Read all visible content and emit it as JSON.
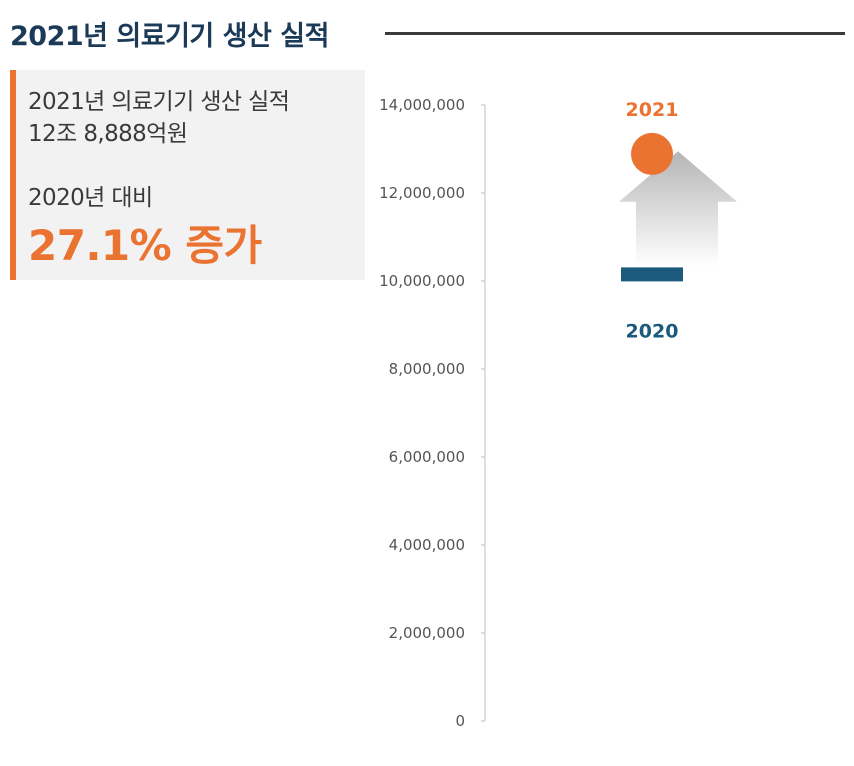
{
  "header": {
    "title": "2021년 의료기기 생산 실적"
  },
  "summary": {
    "line1": "2021년 의료기기 생산 실적",
    "line2": "12조 8,888억원",
    "line3": "2020년 대비",
    "highlight": "27.1% 증가"
  },
  "colors": {
    "accent": "#ea7331",
    "navy": "#1b3a57",
    "bar2020": "#1b5a7d",
    "arrow": "#b9b9b9"
  },
  "chart_data": {
    "type": "scatter",
    "title": "",
    "xlabel": "",
    "ylabel": "",
    "ylim": [
      0,
      14000000
    ],
    "grid": false,
    "y_ticks": [
      {
        "value": 0,
        "label": "0"
      },
      {
        "value": 2000000,
        "label": "2,000,000"
      },
      {
        "value": 4000000,
        "label": "4,000,000"
      },
      {
        "value": 6000000,
        "label": "6,000,000"
      },
      {
        "value": 8000000,
        "label": "8,000,000"
      },
      {
        "value": 10000000,
        "label": "10,000,000"
      },
      {
        "value": 12000000,
        "label": "12,000,000"
      },
      {
        "value": 14000000,
        "label": "14,000,000"
      }
    ],
    "points": [
      {
        "year": "2020",
        "value": 10150000,
        "marker": "bar",
        "color": "#1b5a7d"
      },
      {
        "year": "2021",
        "value": 12888000,
        "marker": "circle",
        "color": "#ea7331"
      }
    ],
    "annotation": "arrow-up from 2020 to 2021"
  }
}
